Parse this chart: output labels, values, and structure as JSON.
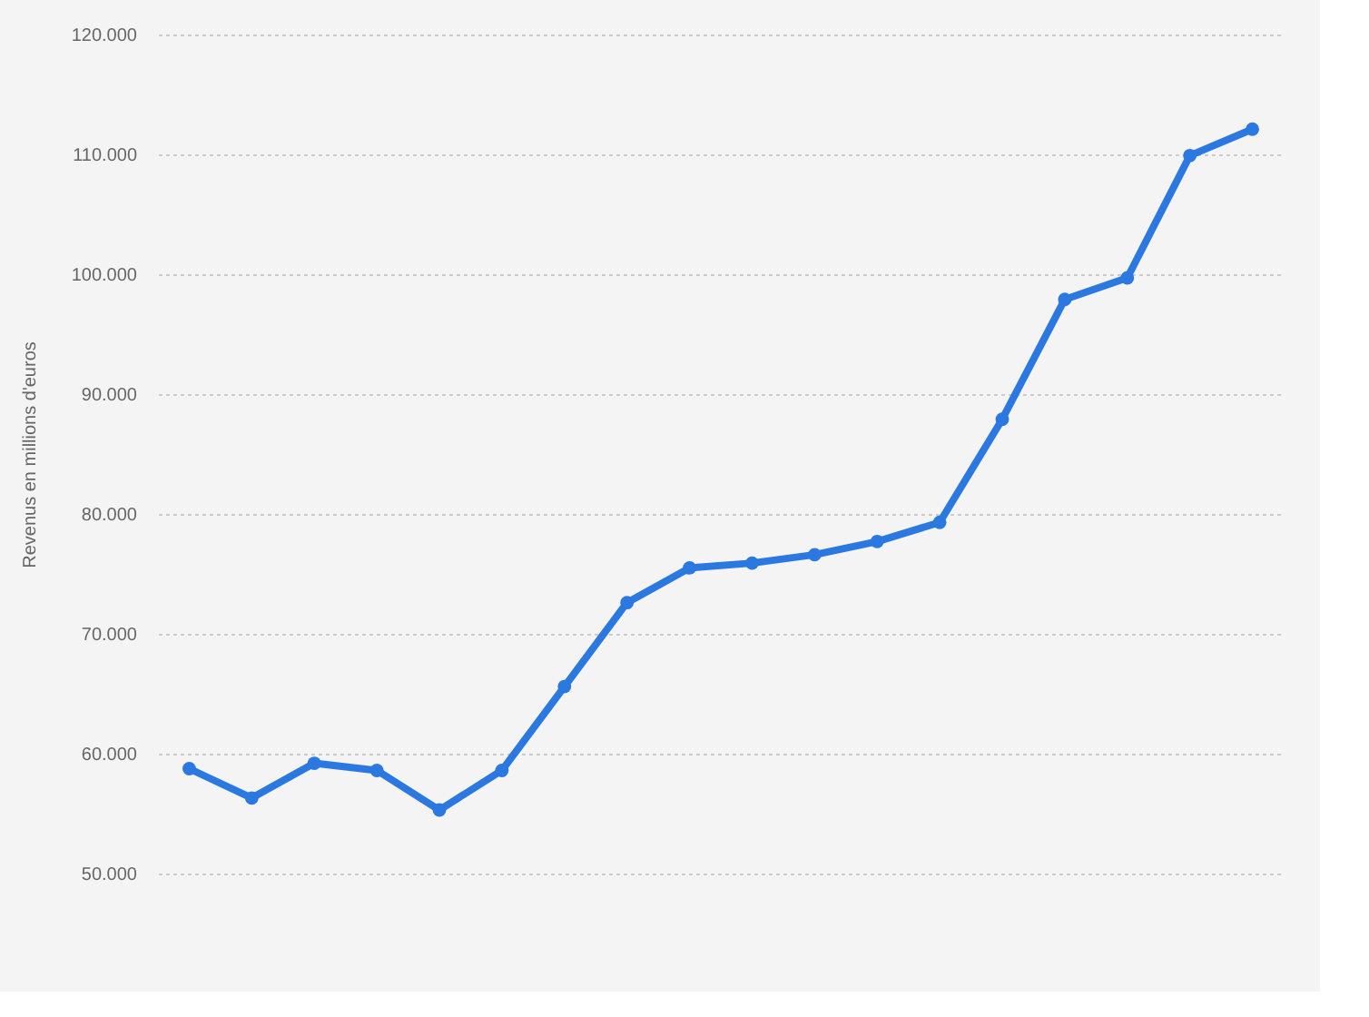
{
  "chart_data": {
    "type": "line",
    "ylabel": "Revenus en millions d'euros",
    "categories": [
      null,
      null,
      null,
      null,
      null,
      null,
      null,
      null,
      null,
      null,
      null,
      null,
      null,
      null,
      null,
      null,
      null,
      null
    ],
    "series": [
      {
        "color": "#2a78e0",
        "values": [
          58750,
          56300,
          59200,
          58600,
          55300,
          58600,
          65600,
          72600,
          75500,
          75900,
          76600,
          77700,
          79300,
          87900,
          97900,
          99700,
          109900,
          112100
        ]
      }
    ],
    "ylim": [
      50000,
      120000
    ],
    "yticks": [
      {
        "value": 50000,
        "label": "50.000"
      },
      {
        "value": 60000,
        "label": "60.000"
      },
      {
        "value": 70000,
        "label": "70.000"
      },
      {
        "value": 80000,
        "label": "80.000"
      },
      {
        "value": 90000,
        "label": "90.000"
      },
      {
        "value": 100000,
        "label": "100.000"
      },
      {
        "value": 110000,
        "label": "110.000"
      },
      {
        "value": 120000,
        "label": "120.000"
      }
    ],
    "grid": "y",
    "marker": "circle",
    "line_style": "solid",
    "tick_labels": "y"
  }
}
